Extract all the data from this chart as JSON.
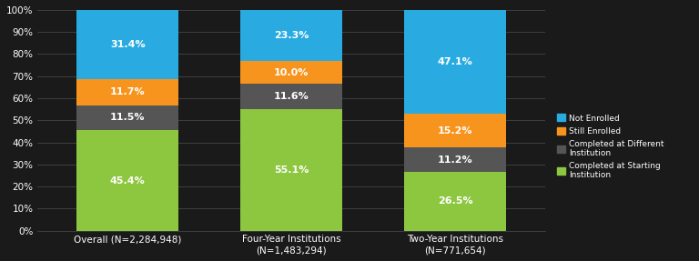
{
  "categories": [
    "Overall (N=2,284,948)",
    "Four-Year Institutions\n(N=1,483,294)",
    "Two-Year Institutions\n(N=771,654)"
  ],
  "completed_starting": [
    45.4,
    55.1,
    26.5
  ],
  "completed_different": [
    11.5,
    11.6,
    11.2
  ],
  "still_enrolled": [
    11.7,
    10.0,
    15.2
  ],
  "not_enrolled": [
    31.4,
    23.3,
    47.1
  ],
  "colors": {
    "completed_starting": "#8dc63f",
    "completed_different": "#555555",
    "still_enrolled": "#f7941d",
    "not_enrolled": "#29abe2"
  },
  "labels": {
    "completed_starting": "Completed at Starting\nInstitution",
    "completed_different": "Completed at Different\nInstitution",
    "still_enrolled": "Still Enrolled",
    "not_enrolled": "Not Enrolled"
  },
  "ylim": [
    0,
    100
  ],
  "yticks": [
    0,
    10,
    20,
    30,
    40,
    50,
    60,
    70,
    80,
    90,
    100
  ],
  "background_color": "#1a1a1a",
  "grid_color": "#444444",
  "text_color": "#ffffff",
  "label_fontsize": 8.0,
  "tick_fontsize": 7.5,
  "bar_width": 0.62
}
